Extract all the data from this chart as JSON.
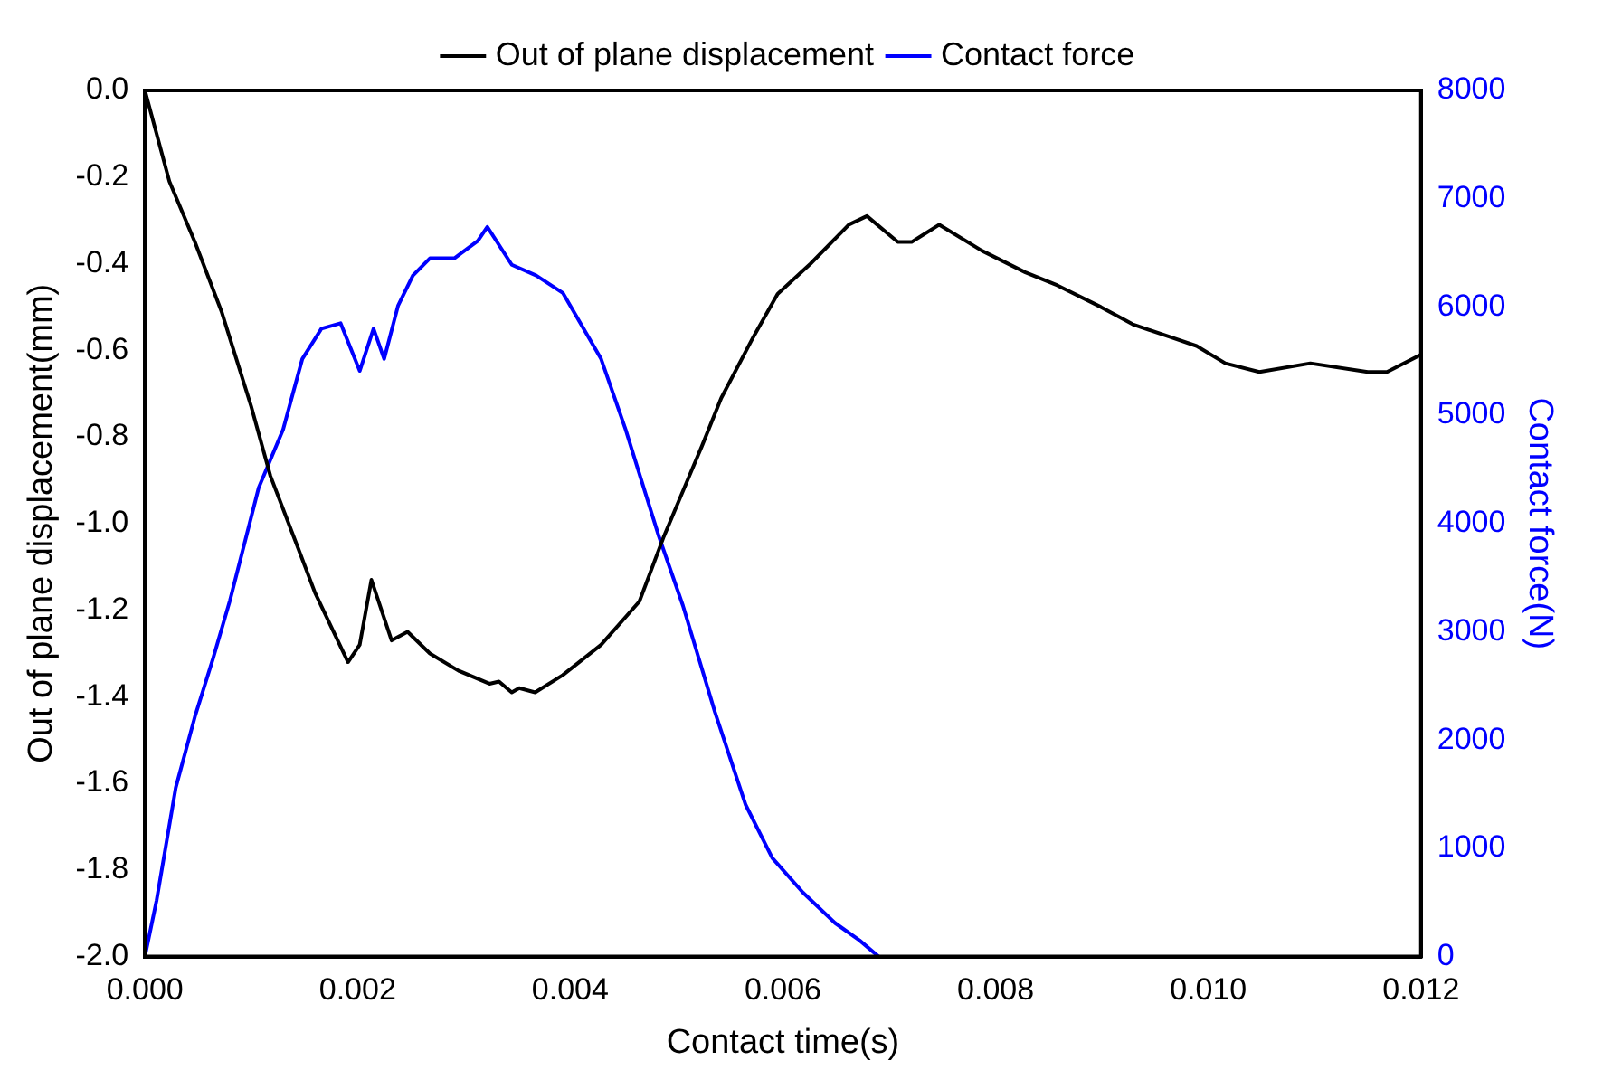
{
  "chart_data": {
    "type": "line",
    "xlabel": "Contact time(s)",
    "ylabel": "Out of plane displacement(mm)",
    "y2label": "Contact force(N)",
    "xlim": [
      0,
      0.012
    ],
    "xticks": [
      {
        "value": 0,
        "label": "0.000"
      },
      {
        "value": 0.002,
        "label": "0.002"
      },
      {
        "value": 0.004,
        "label": "0.004"
      },
      {
        "value": 0.006,
        "label": "0.006"
      },
      {
        "value": 0.008,
        "label": "0.008"
      },
      {
        "value": 0.01,
        "label": "0.010"
      },
      {
        "value": 0.012,
        "label": "0.012"
      }
    ],
    "ylim": [
      -2,
      0
    ],
    "yticks": [
      {
        "value": -2,
        "label": "-2.0"
      },
      {
        "value": -1.8,
        "label": "-1.8"
      },
      {
        "value": -1.6,
        "label": "-1.6"
      },
      {
        "value": -1.4,
        "label": "-1.4"
      },
      {
        "value": -1.2,
        "label": "-1.2"
      },
      {
        "value": -1,
        "label": "-1.0"
      },
      {
        "value": -0.8,
        "label": "-0.8"
      },
      {
        "value": -0.6,
        "label": "-0.6"
      },
      {
        "value": -0.4,
        "label": "-0.4"
      },
      {
        "value": -0.2,
        "label": "-0.2"
      },
      {
        "value": 0,
        "label": "0.0"
      }
    ],
    "y2lim": [
      0,
      8000
    ],
    "y2ticks": [
      0,
      1000,
      2000,
      3000,
      4000,
      5000,
      6000,
      7000,
      8000
    ],
    "grid": false,
    "legend": "top",
    "marker": "none",
    "line_style": "solid",
    "series": [
      {
        "name": "Out of plane displacement",
        "color": "#000000",
        "x": [
          0,
          0.00023,
          0.00047,
          0.00072,
          0.001,
          0.00118,
          0.00143,
          0.0016,
          0.00191,
          0.00202,
          0.00213,
          0.00232,
          0.00247,
          0.00268,
          0.00295,
          0.00324,
          0.00333,
          0.00345,
          0.00352,
          0.00367,
          0.00393,
          0.00429,
          0.00465,
          0.00488,
          0.00524,
          0.00542,
          0.00572,
          0.00595,
          0.00626,
          0.00662,
          0.00679,
          0.00708,
          0.00721,
          0.00747,
          0.00787,
          0.00828,
          0.00858,
          0.00899,
          0.00929,
          0.00965,
          0.00989,
          0.01016,
          0.01048,
          0.01096,
          0.0115,
          0.01168,
          0.012
        ],
        "values": [
          0,
          -0.21,
          -0.35,
          -0.51,
          -0.73,
          -0.89,
          -1.05,
          -1.16,
          -1.32,
          -1.28,
          -1.13,
          -1.27,
          -1.25,
          -1.3,
          -1.34,
          -1.37,
          -1.365,
          -1.39,
          -1.38,
          -1.39,
          -1.35,
          -1.28,
          -1.18,
          -1.03,
          -0.82,
          -0.71,
          -0.57,
          -0.47,
          -0.4,
          -0.31,
          -0.29,
          -0.35,
          -0.35,
          -0.31,
          -0.37,
          -0.42,
          -0.45,
          -0.5,
          -0.54,
          -0.57,
          -0.59,
          -0.63,
          -0.65,
          -0.63,
          -0.65,
          -0.65,
          -0.61
        ]
      },
      {
        "name": "Contact force",
        "color": "#0000ff",
        "axis": "y2",
        "x": [
          0,
          0.00011,
          0.00029,
          0.00047,
          0.00064,
          0.0008,
          0.00107,
          0.0013,
          0.00148,
          0.00166,
          0.00184,
          0.00202,
          0.00215,
          0.00225,
          0.00238,
          0.00252,
          0.00268,
          0.00291,
          0.00313,
          0.00322,
          0.00345,
          0.00368,
          0.00393,
          0.00429,
          0.00452,
          0.00483,
          0.00506,
          0.00536,
          0.00565,
          0.0059,
          0.00619,
          0.00649,
          0.00672,
          0.0069
        ],
        "values": [
          0,
          520,
          1560,
          2215,
          2750,
          3290,
          4330,
          4870,
          5520,
          5800,
          5850,
          5410,
          5800,
          5520,
          6010,
          6290,
          6450,
          6450,
          6610,
          6740,
          6390,
          6290,
          6130,
          5520,
          4870,
          3890,
          3240,
          2260,
          1400,
          910,
          590,
          310,
          150,
          0
        ]
      }
    ]
  }
}
